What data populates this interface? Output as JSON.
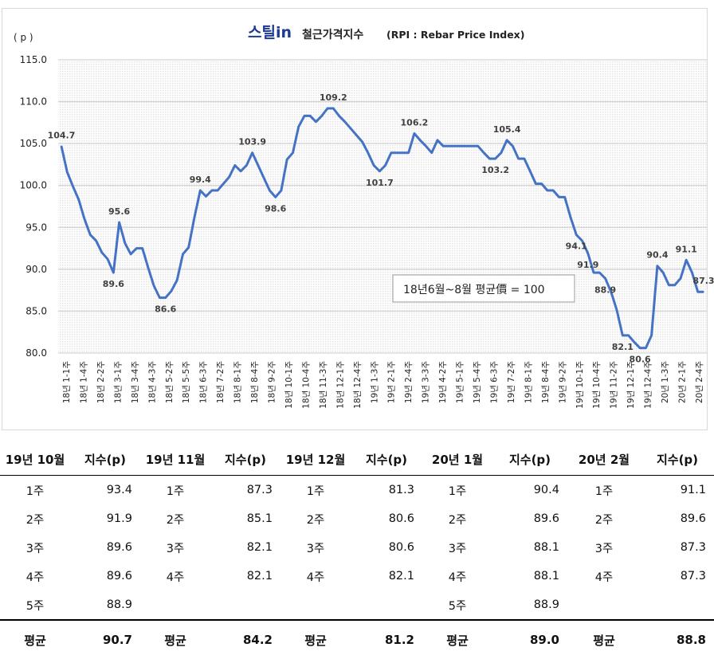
{
  "chart_data": {
    "type": "line",
    "title_logo": "스틸in",
    "title": "철근가격지수",
    "title_suffix": "(RPI : Rebar Price Index)",
    "y_unit": "( p )",
    "ylim": [
      80,
      115
    ],
    "y_ticks": [
      "115.0",
      "110.0",
      "105.0",
      "100.0",
      "95.0",
      "90.0",
      "85.0",
      "80.0"
    ],
    "grid": true,
    "annotation": "18년6월~8월 평균價 = 100",
    "x_tick_labels": [
      "18년 1-1주",
      "18년 1-4주",
      "18년 2-2주",
      "18년 3-1주",
      "18년 3-4주",
      "18년 4-3주",
      "18년 5-2주",
      "18년 5-5주",
      "18년 6-3주",
      "18년 7-2주",
      "18년 8-1주",
      "18년 8-4주",
      "18년 9-2주",
      "18년 10-1주",
      "18년 10-4주",
      "18년 11-3주",
      "18년 12-1주",
      "18년 12-4주",
      "19년 1-3주",
      "19년 2-1주",
      "19년 2-4주",
      "19년 3-3주",
      "19년 4-2주",
      "19년 5-1주",
      "19년 5-4주",
      "19년 6-3주",
      "19년 7-2주",
      "19년 8-1주",
      "19년 8-4주",
      "19년 9-2주",
      "19년 10-1주",
      "19년 10-4주",
      "19년 11-2주",
      "19년 12-1주",
      "19년 12-4주",
      "20년 1-3주",
      "20년 2-1주",
      "20년 2-4주"
    ],
    "series": [
      {
        "name": "",
        "color": "#4472c4",
        "values": [
          104.7,
          101.6,
          99.9,
          98.3,
          96.0,
          94.1,
          93.4,
          92.0,
          91.2,
          89.6,
          95.6,
          93.1,
          91.8,
          92.5,
          92.5,
          90.2,
          88.0,
          86.6,
          86.6,
          87.4,
          88.7,
          91.8,
          92.6,
          96.2,
          99.4,
          98.7,
          99.4,
          99.4,
          100.2,
          101.0,
          102.4,
          101.7,
          102.4,
          103.9,
          102.4,
          100.9,
          99.4,
          98.6,
          99.4,
          103.1,
          103.9,
          107.0,
          108.3,
          108.3,
          107.6,
          108.3,
          109.2,
          109.2,
          108.3,
          107.6,
          106.8,
          106.0,
          105.2,
          103.9,
          102.4,
          101.7,
          102.4,
          103.9,
          103.9,
          103.9,
          103.9,
          106.2,
          105.4,
          104.7,
          103.9,
          105.4,
          104.7,
          104.7,
          104.7,
          104.7,
          104.7,
          104.7,
          104.7,
          103.9,
          103.2,
          103.2,
          103.9,
          105.4,
          104.7,
          103.2,
          103.2,
          101.7,
          100.2,
          100.2,
          99.4,
          99.4,
          98.6,
          98.6,
          96.2,
          94.1,
          93.4,
          91.9,
          89.6,
          89.6,
          88.9,
          87.3,
          85.1,
          82.1,
          82.1,
          81.3,
          80.6,
          80.6,
          82.1,
          90.4,
          89.6,
          88.1,
          88.1,
          88.9,
          91.1,
          89.6,
          87.3,
          87.3
        ]
      }
    ],
    "data_labels": [
      {
        "text": "104.7",
        "index": 0
      },
      {
        "text": "95.6",
        "index": 10
      },
      {
        "text": "89.6",
        "index": 9
      },
      {
        "text": "86.6",
        "index": 18
      },
      {
        "text": "99.4",
        "index": 24
      },
      {
        "text": "103.9",
        "index": 33
      },
      {
        "text": "98.6",
        "index": 37
      },
      {
        "text": "109.2",
        "index": 47
      },
      {
        "text": "101.7",
        "index": 55
      },
      {
        "text": "106.2",
        "index": 61
      },
      {
        "text": "103.2",
        "index": 75
      },
      {
        "text": "105.4",
        "index": 77
      },
      {
        "text": "94.1",
        "index": 89
      },
      {
        "text": "91.9",
        "index": 91
      },
      {
        "text": "88.9",
        "index": 94
      },
      {
        "text": "82.1",
        "index": 97
      },
      {
        "text": "80.6",
        "index": 100
      },
      {
        "text": "90.4",
        "index": 103
      },
      {
        "text": "91.1",
        "index": 108
      },
      {
        "text": "87.3",
        "index": 111
      }
    ]
  },
  "table": {
    "months": [
      {
        "header": "19년 10월",
        "value_header": "지수(p)",
        "rows": [
          [
            "1주",
            "93.4"
          ],
          [
            "2주",
            "91.9"
          ],
          [
            "3주",
            "89.6"
          ],
          [
            "4주",
            "89.6"
          ],
          [
            "5주",
            "88.9"
          ]
        ],
        "avg_label": "평균",
        "avg": "90.7"
      },
      {
        "header": "19년 11월",
        "value_header": "지수(p)",
        "rows": [
          [
            "1주",
            "87.3"
          ],
          [
            "2주",
            "85.1"
          ],
          [
            "3주",
            "82.1"
          ],
          [
            "4주",
            "82.1"
          ],
          [
            "",
            ""
          ]
        ],
        "avg_label": "평균",
        "avg": "84.2"
      },
      {
        "header": "19년 12월",
        "value_header": "지수(p)",
        "rows": [
          [
            "1주",
            "81.3"
          ],
          [
            "2주",
            "80.6"
          ],
          [
            "3주",
            "80.6"
          ],
          [
            "4주",
            "82.1"
          ],
          [
            "",
            ""
          ]
        ],
        "avg_label": "평균",
        "avg": "81.2"
      },
      {
        "header": "20년 1월",
        "value_header": "지수(p)",
        "rows": [
          [
            "1주",
            "90.4"
          ],
          [
            "2주",
            "89.6"
          ],
          [
            "3주",
            "88.1"
          ],
          [
            "4주",
            "88.1"
          ],
          [
            "5주",
            "88.9"
          ]
        ],
        "avg_label": "평균",
        "avg": "89.0"
      },
      {
        "header": "20년 2월",
        "value_header": "지수(p)",
        "rows": [
          [
            "1주",
            "91.1"
          ],
          [
            "2주",
            "89.6"
          ],
          [
            "3주",
            "87.3"
          ],
          [
            "4주",
            "87.3"
          ],
          [
            "",
            ""
          ]
        ],
        "avg_label": "평균",
        "avg": "88.8"
      }
    ]
  }
}
